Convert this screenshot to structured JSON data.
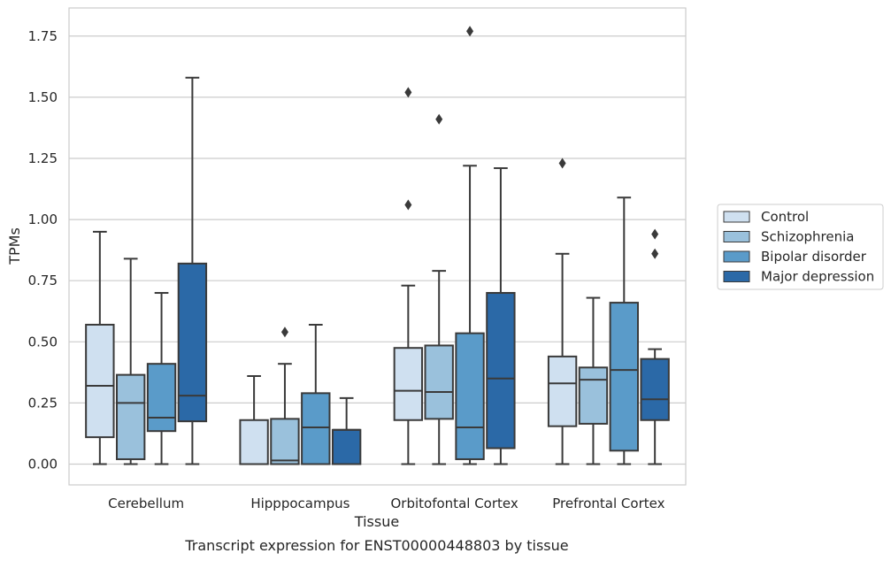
{
  "chart_data": {
    "type": "box",
    "xlabel": "Tissue",
    "ylabel": "TPMs",
    "caption": "Transcript expression for ENST00000448803 by tissue",
    "ylim": [
      -0.085,
      1.865
    ],
    "yticks": [
      "0.00",
      "0.25",
      "0.50",
      "0.75",
      "1.00",
      "1.25",
      "1.50",
      "1.75"
    ],
    "grid": true,
    "legend_position": "right",
    "categories": [
      "Cerebellum",
      "Hipppocampus",
      "Orbitofontal Cortex",
      "Prefrontal Cortex"
    ],
    "series": [
      {
        "name": "Control",
        "color": "#cfe0f0",
        "boxes": [
          {
            "lower": 0.0,
            "q1": 0.11,
            "median": 0.32,
            "q3": 0.57,
            "upper": 0.95,
            "outliers": []
          },
          {
            "lower": 0.0,
            "q1": 0.0,
            "median": 0.0,
            "q3": 0.18,
            "upper": 0.36,
            "outliers": []
          },
          {
            "lower": 0.0,
            "q1": 0.18,
            "median": 0.3,
            "q3": 0.475,
            "upper": 0.73,
            "outliers": [
              1.06,
              1.52
            ]
          },
          {
            "lower": 0.0,
            "q1": 0.155,
            "median": 0.33,
            "q3": 0.44,
            "upper": 0.86,
            "outliers": [
              1.23
            ]
          }
        ]
      },
      {
        "name": "Schizophrenia",
        "color": "#9ac1dc",
        "boxes": [
          {
            "lower": 0.0,
            "q1": 0.02,
            "median": 0.25,
            "q3": 0.365,
            "upper": 0.84,
            "outliers": []
          },
          {
            "lower": 0.0,
            "q1": 0.0,
            "median": 0.015,
            "q3": 0.185,
            "upper": 0.41,
            "outliers": [
              0.54
            ]
          },
          {
            "lower": 0.0,
            "q1": 0.185,
            "median": 0.295,
            "q3": 0.485,
            "upper": 0.79,
            "outliers": [
              1.41
            ]
          },
          {
            "lower": 0.0,
            "q1": 0.165,
            "median": 0.345,
            "q3": 0.395,
            "upper": 0.68,
            "outliers": []
          }
        ]
      },
      {
        "name": "Bipolar disorder",
        "color": "#5a9bc9",
        "boxes": [
          {
            "lower": 0.0,
            "q1": 0.135,
            "median": 0.19,
            "q3": 0.41,
            "upper": 0.7,
            "outliers": []
          },
          {
            "lower": 0.0,
            "q1": 0.0,
            "median": 0.15,
            "q3": 0.29,
            "upper": 0.57,
            "outliers": []
          },
          {
            "lower": 0.0,
            "q1": 0.02,
            "median": 0.15,
            "q3": 0.535,
            "upper": 1.22,
            "outliers": [
              1.77
            ]
          },
          {
            "lower": 0.0,
            "q1": 0.055,
            "median": 0.385,
            "q3": 0.66,
            "upper": 1.09,
            "outliers": []
          }
        ]
      },
      {
        "name": "Major depression",
        "color": "#2b69a7",
        "boxes": [
          {
            "lower": 0.0,
            "q1": 0.175,
            "median": 0.28,
            "q3": 0.82,
            "upper": 1.58,
            "outliers": []
          },
          {
            "lower": 0.0,
            "q1": 0.0,
            "median": 0.14,
            "q3": 0.14,
            "upper": 0.27,
            "outliers": []
          },
          {
            "lower": 0.0,
            "q1": 0.065,
            "median": 0.35,
            "q3": 0.7,
            "upper": 1.21,
            "outliers": []
          },
          {
            "lower": 0.0,
            "q1": 0.18,
            "median": 0.265,
            "q3": 0.43,
            "upper": 0.47,
            "outliers": [
              0.86,
              0.94
            ]
          }
        ]
      }
    ]
  }
}
